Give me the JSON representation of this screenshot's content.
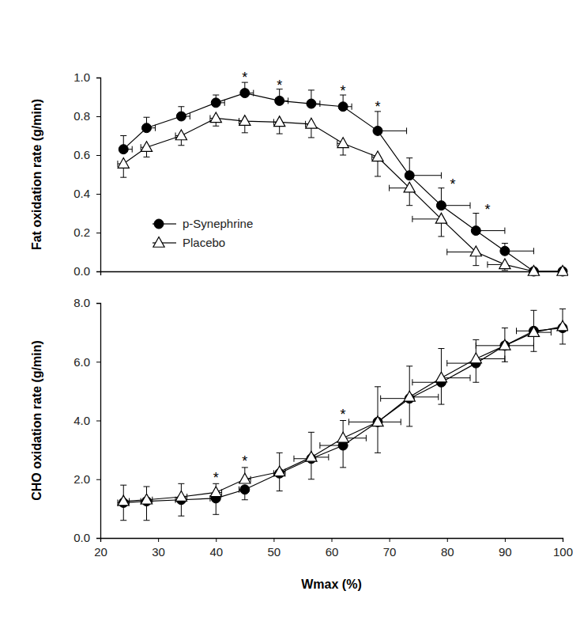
{
  "chart_data": [
    {
      "type": "line",
      "y_label": "Fat oxidation rate (g/min)",
      "x": [
        24,
        28,
        34,
        40,
        45,
        51,
        56.5,
        62,
        68,
        73.5,
        79,
        85,
        90,
        95,
        100
      ],
      "xlim": [
        20,
        100
      ],
      "ylim": [
        0,
        1
      ],
      "yticks": [
        {
          "value": 0,
          "label": "0.0"
        },
        {
          "value": 0.2,
          "label": "0.2"
        },
        {
          "value": 0.4,
          "label": "0.4"
        },
        {
          "value": 0.6,
          "label": "0.6"
        },
        {
          "value": 0.8,
          "label": "0.8"
        },
        {
          "value": 1,
          "label": "1.0"
        }
      ],
      "tick_labels": "y",
      "legend": "lower left",
      "series": [
        {
          "name": "p-Synephrine",
          "color": "#000000",
          "marker": "circle",
          "values": [
            0.63,
            0.74,
            0.8,
            0.87,
            0.92,
            0.88,
            0.865,
            0.85,
            0.725,
            0.495,
            0.34,
            0.21,
            0.105,
            0,
            0
          ],
          "errors": [
            0.07,
            0.055,
            0.05,
            0.04,
            0.055,
            0.06,
            0.07,
            0.06,
            0.1,
            0.09,
            0.09,
            0.09,
            0.04,
            0,
            0
          ],
          "x_errors": [
            1.5,
            1.5,
            1.5,
            1.5,
            1.5,
            1.5,
            1.5,
            1.5,
            5,
            5.5,
            5,
            5,
            5,
            0,
            0
          ]
        },
        {
          "name": "Placebo",
          "color": "#000000",
          "marker": "triangle-open",
          "values": [
            0.555,
            0.64,
            0.7,
            0.79,
            0.775,
            0.77,
            0.76,
            0.66,
            0.59,
            0.43,
            0.27,
            0.1,
            0.035,
            0,
            0
          ],
          "errors": [
            -0.07,
            -0.05,
            -0.05,
            -0.04,
            -0.06,
            -0.06,
            -0.07,
            -0.06,
            -0.1,
            -0.09,
            -0.09,
            -0.07,
            -0.03,
            0,
            0
          ],
          "x_errors": [
            -1,
            -1,
            -1,
            -1,
            -1,
            -1,
            -1,
            -1,
            -1,
            -3.5,
            -5,
            -5,
            -3,
            0,
            0
          ]
        }
      ],
      "annotations": [
        {
          "text": "*",
          "x": 45,
          "y": 1.0
        },
        {
          "text": "*",
          "x": 51,
          "y": 0.96
        },
        {
          "text": "*",
          "x": 62,
          "y": 0.93
        },
        {
          "text": "*",
          "x": 68,
          "y": 0.85
        },
        {
          "text": "*",
          "x": 81,
          "y": 0.45
        },
        {
          "text": "*",
          "x": 87,
          "y": 0.32
        }
      ]
    },
    {
      "type": "line",
      "x_label": "Wmax (%)",
      "y_label": "CHO oxidation rate (g/min)",
      "x": [
        24,
        28,
        34,
        40,
        45,
        51,
        56.5,
        62,
        68,
        73.5,
        79,
        85,
        90,
        95,
        100
      ],
      "xlim": [
        20,
        100
      ],
      "xticks": [
        20,
        30,
        40,
        50,
        60,
        70,
        80,
        90,
        100
      ],
      "ylim": [
        0,
        8
      ],
      "yticks": [
        {
          "value": 0,
          "label": "0.0"
        },
        {
          "value": 2,
          "label": "2.0"
        },
        {
          "value": 4,
          "label": "4.0"
        },
        {
          "value": 6,
          "label": "6.0"
        },
        {
          "value": 8,
          "label": "8.0"
        }
      ],
      "series": [
        {
          "name": "p-Synephrine",
          "color": "#000000",
          "marker": "circle",
          "values": [
            1.2,
            1.25,
            1.3,
            1.35,
            1.65,
            2.2,
            2.7,
            3.15,
            3.95,
            4.75,
            5.3,
            5.95,
            6.55,
            7.05,
            7.15
          ],
          "errors": [
            -0.6,
            -0.65,
            -0.55,
            -0.55,
            -0.35,
            -0.6,
            -0.7,
            -0.75,
            -1.05,
            -0.95,
            -0.75,
            -0.65,
            -0.55,
            -0.7,
            -0.55
          ],
          "x_errors": [
            -1,
            -1,
            -1,
            -1,
            -1,
            -1,
            -3,
            -4,
            -5,
            -5,
            -5,
            -5,
            -5,
            -3,
            0
          ]
        },
        {
          "name": "Placebo",
          "color": "#000000",
          "marker": "triangle-open",
          "values": [
            1.25,
            1.3,
            1.4,
            1.55,
            2.0,
            2.25,
            2.75,
            3.4,
            3.95,
            4.8,
            5.45,
            6.1,
            6.55,
            7.0,
            7.2
          ],
          "errors": [
            0.55,
            0.45,
            0.45,
            0.3,
            0.4,
            0.65,
            0.85,
            0.6,
            1.2,
            1.05,
            1.0,
            0.65,
            0.6,
            0.75,
            0.6
          ],
          "x_errors": [
            1,
            1,
            1,
            1,
            1,
            1,
            3,
            4,
            4,
            5,
            5,
            5,
            5,
            3,
            0
          ]
        }
      ],
      "annotations": [
        {
          "text": "*",
          "x": 40,
          "y": 2.05
        },
        {
          "text": "*",
          "x": 45,
          "y": 2.6
        },
        {
          "text": "*",
          "x": 62,
          "y": 4.2
        }
      ]
    }
  ]
}
